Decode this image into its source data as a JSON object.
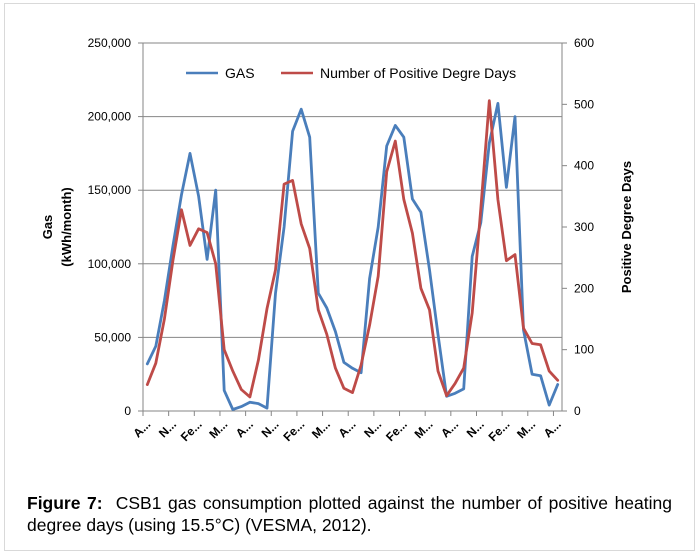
{
  "chart_data": {
    "type": "line",
    "x": [
      "A...",
      "",
      "",
      "N...",
      "",
      "",
      "Fe...",
      "",
      "",
      "M...",
      "",
      "",
      "A...",
      "",
      "",
      "N...",
      "",
      "",
      "Fe...",
      "",
      "",
      "M...",
      "",
      "",
      "A...",
      "",
      "",
      "N...",
      "",
      "",
      "Fe...",
      "",
      "",
      "M...",
      "",
      "",
      "A...",
      "",
      "",
      "N...",
      "",
      "",
      "Fe...",
      "",
      "",
      "M...",
      "",
      "",
      "A..."
    ],
    "x_tick_labels": [
      "A...",
      "N...",
      "Fe...",
      "M...",
      "A...",
      "N...",
      "Fe...",
      "M...",
      "A...",
      "N...",
      "Fe...",
      "M...",
      "A...",
      "N...",
      "Fe...",
      "M...",
      "A..."
    ],
    "xlabel": "",
    "ylabel": "Gas (kWh/month)",
    "ylabel_lines": [
      "Gas",
      "(kWh/month)"
    ],
    "y2label": "Positive Degree Days",
    "ylim": [
      0,
      250000
    ],
    "y2lim": [
      0,
      600
    ],
    "y_ticks": [
      "0",
      "50,000",
      "100,000",
      "150,000",
      "200,000",
      "250,000"
    ],
    "y2_ticks": [
      "0",
      "100",
      "200",
      "300",
      "400",
      "500",
      "600"
    ],
    "grid": "horizontal major on left axis",
    "legend_position": "top-center",
    "series": [
      {
        "name": "GAS",
        "axis": "left",
        "color": "#4a7ebb",
        "values": [
          32000,
          44000,
          75000,
          112000,
          147000,
          175000,
          146000,
          103000,
          150000,
          14000,
          1000,
          3000,
          6000,
          5000,
          2000,
          80000,
          125000,
          190000,
          205000,
          186000,
          80000,
          70000,
          54000,
          33000,
          29000,
          26000,
          90000,
          125000,
          180000,
          194000,
          186000,
          144000,
          135000,
          96000,
          52000,
          10000,
          12000,
          15000,
          105000,
          128000,
          182000,
          209000,
          152000,
          200000,
          55000,
          25000,
          24000,
          4000,
          18000
        ]
      },
      {
        "name": "Number of Positive Degre Days",
        "axis": "right",
        "color": "#be4b48",
        "values": [
          43,
          78,
          150,
          245,
          328,
          270,
          297,
          291,
          240,
          100,
          65,
          35,
          23,
          83,
          167,
          230,
          370,
          376,
          305,
          265,
          165,
          125,
          70,
          37,
          30,
          75,
          140,
          220,
          390,
          440,
          345,
          290,
          200,
          165,
          65,
          25,
          45,
          70,
          160,
          330,
          506,
          345,
          245,
          255,
          135,
          110,
          108,
          65,
          50
        ]
      }
    ]
  },
  "caption": {
    "label": "Figure 7:",
    "text": "CSB1 gas consumption plotted against the number of positive heating degree days (using 15.5°C) (VESMA, 2012)."
  }
}
